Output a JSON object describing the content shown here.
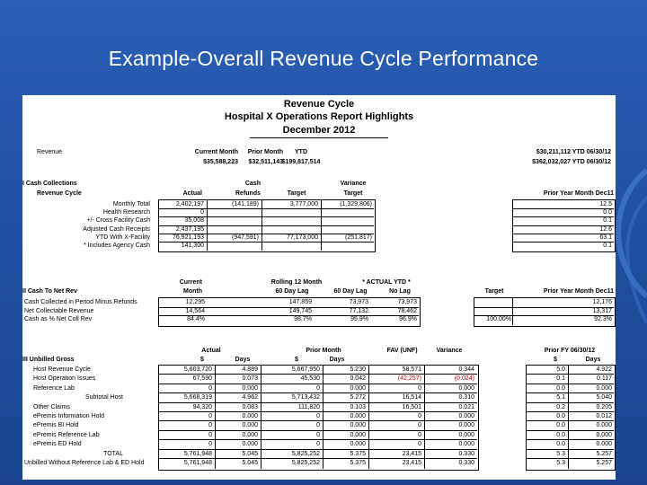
{
  "slide": {
    "title": "Example-Overall Revenue Cycle Performance"
  },
  "report": {
    "header": [
      "Revenue Cycle",
      "Hospital X Operations Report Highlights",
      "December 2012"
    ],
    "top": {
      "label": "Revenue",
      "col1": [
        "Current Month",
        "$35,588,223"
      ],
      "col2": [
        "Prior Month",
        "$32,511,143"
      ],
      "col3": [
        "YTD",
        "$199,817,514"
      ],
      "col4": [
        "$30,211,112 YTD 06/30/12",
        "$362,032,027 YTD 06/30/12"
      ]
    },
    "s1": {
      "label": "I  Cash Collections",
      "heads": {
        "name": "Revenue Cycle",
        "actual": "Actual",
        "refunds": [
          "Cash",
          "Refunds"
        ],
        "target": "Target",
        "variance": [
          "Variance",
          "Target"
        ],
        "prior": "Prior Year Month Dec11"
      },
      "rows": [
        {
          "name": "Monthly Total",
          "actual": "2,402,197",
          "refunds": "(141,189)",
          "target": "3,777,000",
          "variance": "(1,329,806)",
          "prior": "12.5"
        },
        {
          "name": "Health Research",
          "actual": "0",
          "refunds": "",
          "target": "",
          "variance": "",
          "prior": "0.0"
        },
        {
          "name": "+/- Cross Facility Cash",
          "actual": "35,008",
          "refunds": "",
          "target": "",
          "variance": "",
          "prior": "0.1"
        },
        {
          "name": "Adjusted Cash Receipts",
          "actual": "2,437,195",
          "refunds": "",
          "target": "",
          "variance": "",
          "prior": "12.6"
        },
        {
          "name": "YTD With X-Facility",
          "actual": "76,921,193",
          "refunds": "(947,591)",
          "target": "77,173,000",
          "variance": "(251,817)",
          "prior": "63.1"
        },
        {
          "name": "* Includes Agency Cash",
          "actual": "141,300",
          "refunds": "",
          "target": "",
          "variance": "",
          "prior": "0.1"
        }
      ]
    },
    "s2": {
      "label": "II  Cash To Net Rev",
      "heads": {
        "current": [
          "Current",
          "Month"
        ],
        "rolling": "Rolling 12 Month",
        "actual_ytd": "* ACTUAL  YTD *",
        "lag60a": "60 Day Lag",
        "lag60b": "60 Day Lag",
        "nolag": "No Lag",
        "target": "Target",
        "prior": "Prior Year Month Dec11"
      },
      "rows": [
        {
          "name": "Cash Collected in Period Minus Refunds",
          "current": "12,295",
          "lag60a": "147,859",
          "lag60b": "73,973",
          "nolag": "73,973",
          "target": "",
          "prior": "12,176"
        },
        {
          "name": "Net Collectable Revenue",
          "current": "14,564",
          "lag60a": "149,745",
          "lag60b": "77,132",
          "nolag": "78,462",
          "target": "",
          "prior": "13,317"
        },
        {
          "name": "Cash as % Net Coll Rev",
          "current": "84.4%",
          "lag60a": "98.7%",
          "lag60b": "95.9%",
          "nolag": "96.9%",
          "target": "100.00%",
          "prior": "92.3%"
        }
      ]
    },
    "s3": {
      "label": "III  Unbilled  Gross",
      "heads": {
        "actual": "Actual",
        "prior_month": "Prior Month",
        "fav": "FAV (UNF)",
        "variance": "Variance",
        "prior_fy": "Prior FY 06/30/12",
        "dollar": "$",
        "days": "Days"
      },
      "rows": [
        {
          "name": "Host Revenue Cycle",
          "a_amt": "5,603,720",
          "a_days": "4.889",
          "p_amt": "5,667,950",
          "p_days": "5.230",
          "fav": "58,571",
          "var": "0.344",
          "f_amt": "5.0",
          "f_days": "4.922",
          "red": false,
          "bold": false
        },
        {
          "name": "Host Operation Issues",
          "a_amt": "67,590",
          "a_days": "0.073",
          "p_amt": "45,530",
          "p_days": "0.042",
          "fav": "(42,257)",
          "var": "(0.024)",
          "f_amt": "0.1",
          "f_days": "0.117",
          "red": true,
          "bold": false
        },
        {
          "name": "Reference Lab",
          "a_amt": "0",
          "a_days": "0.000",
          "p_amt": "0",
          "p_days": "0.000",
          "fav": "0",
          "var": "0.000",
          "f_amt": "0.0",
          "f_days": "0.000",
          "red": false,
          "bold": false
        },
        {
          "name": "Subtotal Host",
          "a_amt": "5,668,319",
          "a_days": "4.962",
          "p_amt": "5,713,432",
          "p_days": "5.272",
          "fav": "16,514",
          "var": "0.310",
          "f_amt": "5.1",
          "f_days": "5.040",
          "red": false,
          "bold": false
        },
        {
          "name": "Other Claims",
          "a_amt": "94,320",
          "a_days": "0.083",
          "p_amt": "111,820",
          "p_days": "0.103",
          "fav": "16,501",
          "var": "0.021",
          "f_amt": "0.2",
          "f_days": "0.205",
          "red": false,
          "bold": false
        },
        {
          "name": "ePremis Information Hold",
          "a_amt": "0",
          "a_days": "0.000",
          "p_amt": "0",
          "p_days": "0.000",
          "fav": "0",
          "var": "0.000",
          "f_amt": "0.0",
          "f_days": "0.012",
          "red": false,
          "bold": false
        },
        {
          "name": "ePremis BI Hold",
          "a_amt": "0",
          "a_days": "0.000",
          "p_amt": "0",
          "p_days": "0.000",
          "fav": "0",
          "var": "0.000",
          "f_amt": "0.0",
          "f_days": "0.000",
          "red": false,
          "bold": false
        },
        {
          "name": "ePremis Reference Lab",
          "a_amt": "0",
          "a_days": "0.000",
          "p_amt": "0",
          "p_days": "0.000",
          "fav": "0",
          "var": "0.000",
          "f_amt": "0.0",
          "f_days": "0.000",
          "red": false,
          "bold": false
        },
        {
          "name": "ePremis ED Hold",
          "a_amt": "0",
          "a_days": "0.000",
          "p_amt": "0",
          "p_days": "0.000",
          "fav": "0",
          "var": "0.000",
          "f_amt": "0.0",
          "f_days": "0.000",
          "red": false,
          "bold": false
        },
        {
          "name": "TOTAL",
          "a_amt": "5,761,948",
          "a_days": "5.045",
          "p_amt": "5,825,252",
          "p_days": "5.375",
          "fav": "23,415",
          "var": "0.330",
          "f_amt": "5.3",
          "f_days": "5.257",
          "red": false,
          "bold": false
        },
        {
          "name": "Unbilled Without Reference Lab & ED Hold",
          "a_amt": "5,761,948",
          "a_days": "5.045",
          "p_amt": "5,825,252",
          "p_days": "5.375",
          "fav": "23,415",
          "var": "0.330",
          "f_amt": "5.3",
          "f_days": "5.257",
          "red": false,
          "bold": false
        }
      ]
    }
  }
}
